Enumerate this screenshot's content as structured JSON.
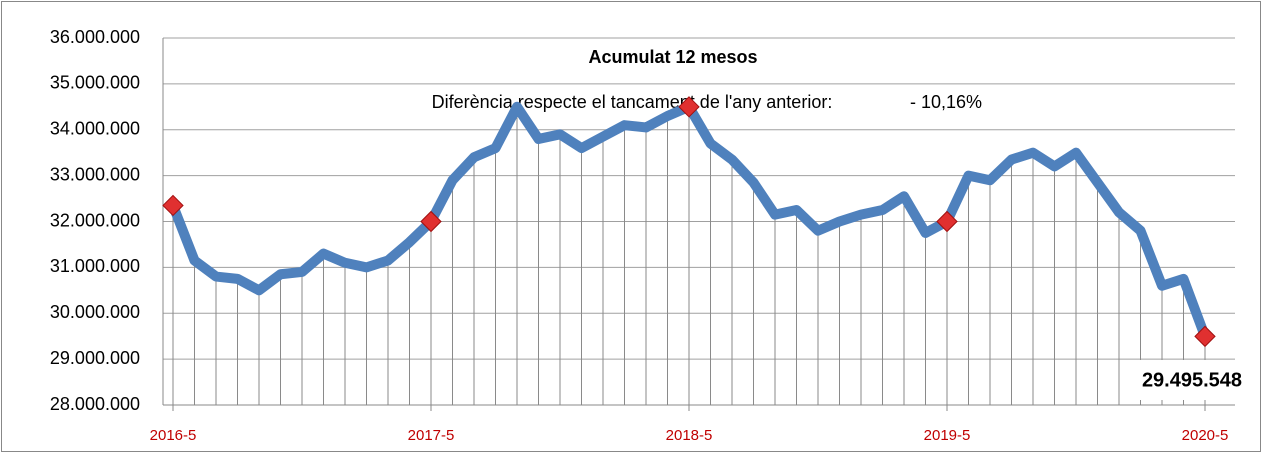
{
  "chart_data": {
    "type": "line",
    "title": "Acumulat 12 mesos",
    "annotations": [
      "Diferència respecte el tancament de l'any anterior:",
      "- 10,16%"
    ],
    "categories": [
      "2016-5",
      null,
      null,
      null,
      null,
      null,
      null,
      null,
      null,
      null,
      null,
      null,
      "2017-5",
      null,
      null,
      null,
      null,
      null,
      null,
      null,
      null,
      null,
      null,
      null,
      "2018-5",
      null,
      null,
      null,
      null,
      null,
      null,
      null,
      null,
      null,
      null,
      null,
      "2019-5",
      null,
      null,
      null,
      null,
      null,
      null,
      null,
      null,
      null,
      null,
      null,
      "2020-5"
    ],
    "values": [
      32350000,
      31150000,
      30800000,
      30750000,
      30500000,
      30850000,
      30900000,
      31300000,
      31100000,
      31000000,
      31150000,
      31550000,
      32000000,
      32900000,
      33400000,
      33600000,
      34500000,
      33800000,
      33900000,
      33600000,
      33850000,
      34100000,
      34050000,
      34300000,
      34500000,
      33700000,
      33350000,
      32850000,
      32150000,
      32250000,
      31800000,
      32000000,
      32150000,
      32250000,
      32550000,
      31750000,
      32000000,
      33000000,
      32900000,
      33350000,
      33500000,
      33200000,
      33500000,
      32850000,
      32200000,
      31800000,
      30600000,
      30750000,
      29495548
    ],
    "value_labels": [
      null,
      null,
      null,
      null,
      null,
      null,
      null,
      null,
      null,
      null,
      null,
      null,
      null,
      null,
      null,
      null,
      null,
      null,
      null,
      null,
      null,
      null,
      null,
      null,
      null,
      null,
      null,
      null,
      null,
      null,
      null,
      null,
      null,
      null,
      null,
      null,
      null,
      null,
      null,
      null,
      null,
      null,
      null,
      null,
      null,
      null,
      null,
      null,
      "29.495.548"
    ],
    "color": "#4f81bd",
    "marker_color": "#e03030",
    "ylim": [
      28000000,
      36000000
    ],
    "yticks": [
      {
        "value": 28000000,
        "label": "28.000.000"
      },
      {
        "value": 29000000,
        "label": "29.000.000"
      },
      {
        "value": 30000000,
        "label": "30.000.000"
      },
      {
        "value": 31000000,
        "label": "31.000.000"
      },
      {
        "value": 32000000,
        "label": "32.000.000"
      },
      {
        "value": 33000000,
        "label": "33.000.000"
      },
      {
        "value": 34000000,
        "label": "34.000.000"
      },
      {
        "value": 35000000,
        "label": "35.000.000"
      },
      {
        "value": 36000000,
        "label": "36.000.000"
      }
    ],
    "grid": true
  }
}
